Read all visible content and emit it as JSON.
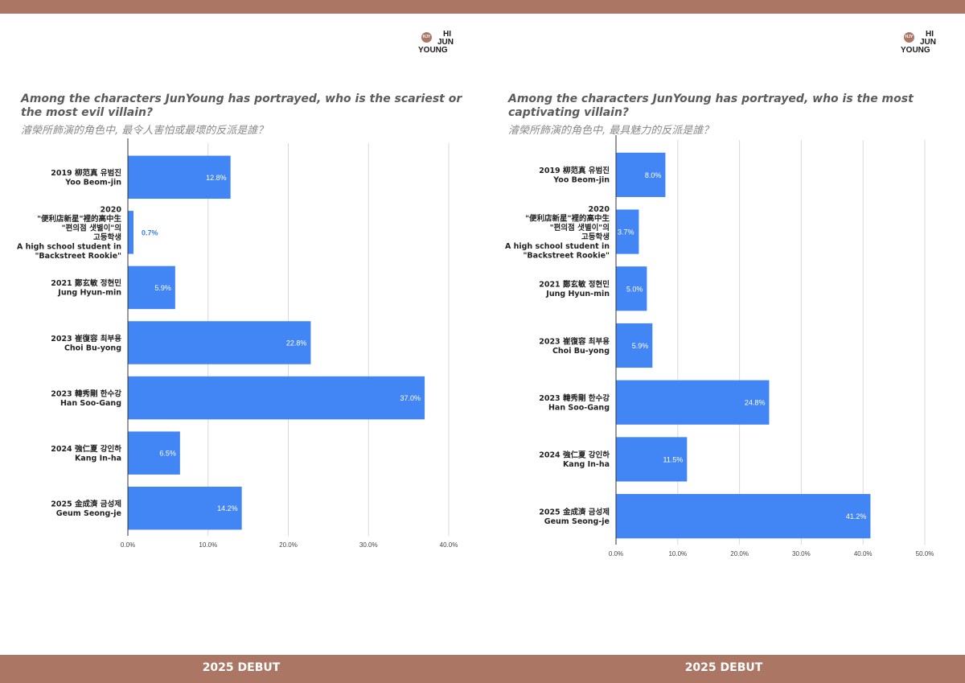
{
  "brand": {
    "bar_color": "#ab7663",
    "logo_lines": [
      "HI",
      "JUN",
      "YOUNG"
    ],
    "logo_mark": "HJY"
  },
  "footer": {
    "left": "2025 DEBUT",
    "right": "2025 DEBUT"
  },
  "colors": {
    "bar": "#4285f4",
    "grid": "#d9d9d9",
    "axis": "#333333",
    "outside_label": "#3b7de9"
  },
  "chart_data": [
    {
      "type": "bar",
      "orientation": "horizontal",
      "title": "Among the characters JunYoung has portrayed, who is the scariest or the most evil villain?",
      "subtitle": "濬榮所飾演的角色中, 最令人害怕或最壞的反派是誰？",
      "categories": [
        [
          "2019 柳范真 유범진",
          "Yoo Beom-jin"
        ],
        [
          "2020",
          "\"便利店新星\"裡的高中生",
          "\"편의점 샛별이\"의",
          "고등학생",
          "A high school student in",
          "\"Backstreet Rookie\""
        ],
        [
          "2021 鄭玄敏 정현민",
          "Jung Hyun-min"
        ],
        [
          "2023 崔復容 최부용",
          "Choi Bu-yong"
        ],
        [
          "2023 韓秀剛 한수강",
          "Han Soo-Gang"
        ],
        [
          "2024 強仁夏 강인하",
          "Kang In-ha"
        ],
        [
          "2025 金成濟 금성제",
          "Geum Seong-je"
        ]
      ],
      "values": [
        12.8,
        0.7,
        5.9,
        22.8,
        37.0,
        6.5,
        14.2
      ],
      "value_labels": [
        "12.8%",
        "0.7%",
        "5.9%",
        "22.8%",
        "37.0%",
        "6.5%",
        "14.2%"
      ],
      "xlim": [
        0,
        40
      ],
      "xticks": [
        "0.0%",
        "10.0%",
        "20.0%",
        "30.0%",
        "40.0%"
      ],
      "grid": true
    },
    {
      "type": "bar",
      "orientation": "horizontal",
      "title": "Among the characters JunYoung has portrayed, who is the most captivating villain?",
      "subtitle": "濬榮所飾演的角色中, 最具魅力的反派是誰？",
      "categories": [
        [
          "2019 柳范真 유범진",
          "Yoo Beom-jin"
        ],
        [
          "2020",
          "\"便利店新星\"裡的高中生",
          "\"편의점 샛별이\"의",
          "고등학생",
          "A high school student in",
          "\"Backstreet Rookie\""
        ],
        [
          "2021 鄭玄敏 정현민",
          "Jung Hyun-min"
        ],
        [
          "2023 崔復容 최부용",
          "Choi Bu-yong"
        ],
        [
          "2023 韓秀剛 한수강",
          "Han Soo-Gang"
        ],
        [
          "2024 強仁夏 강인하",
          "Kang In-ha"
        ],
        [
          "2025 金成濟 금성제",
          "Geum Seong-je"
        ]
      ],
      "values": [
        8.0,
        3.7,
        5.0,
        5.9,
        24.8,
        11.5,
        41.2
      ],
      "value_labels": [
        "8.0%",
        "3.7%",
        "5.0%",
        "5.9%",
        "24.8%",
        "11.5%",
        "41.2%"
      ],
      "xlim": [
        0,
        50
      ],
      "xticks": [
        "0.0%",
        "10.0%",
        "20.0%",
        "30.0%",
        "40.0%",
        "50.0%"
      ],
      "grid": true
    }
  ]
}
